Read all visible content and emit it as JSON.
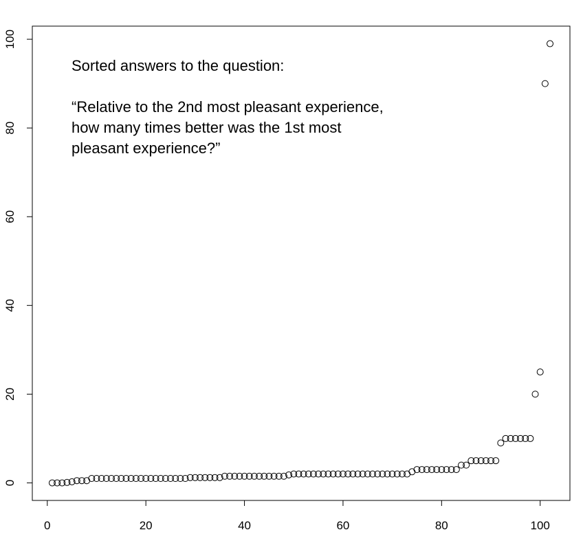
{
  "chart_data": {
    "type": "scatter",
    "annotation": [
      "Sorted answers to the question:",
      "“Relative to the 2nd most pleasant experience,",
      "how many times better was the 1st most",
      "pleasant experience?”"
    ],
    "x": [
      1,
      2,
      3,
      4,
      5,
      6,
      7,
      8,
      9,
      10,
      11,
      12,
      13,
      14,
      15,
      16,
      17,
      18,
      19,
      20,
      21,
      22,
      23,
      24,
      25,
      26,
      27,
      28,
      29,
      30,
      31,
      32,
      33,
      34,
      35,
      36,
      37,
      38,
      39,
      40,
      41,
      42,
      43,
      44,
      45,
      46,
      47,
      48,
      49,
      50,
      51,
      52,
      53,
      54,
      55,
      56,
      57,
      58,
      59,
      60,
      61,
      62,
      63,
      64,
      65,
      66,
      67,
      68,
      69,
      70,
      71,
      72,
      73,
      74,
      75,
      76,
      77,
      78,
      79,
      80,
      81,
      82,
      83,
      84,
      85,
      86,
      87,
      88,
      89,
      90,
      91,
      92,
      93,
      94,
      95,
      96,
      97,
      98,
      99,
      100,
      101,
      102
    ],
    "values": [
      0,
      0,
      0,
      0.1,
      0.25,
      0.5,
      0.5,
      0.5,
      1,
      1,
      1,
      1,
      1,
      1,
      1,
      1,
      1,
      1,
      1,
      1,
      1,
      1,
      1,
      1,
      1,
      1,
      1,
      1,
      1.2,
      1.2,
      1.2,
      1.2,
      1.2,
      1.2,
      1.2,
      1.5,
      1.5,
      1.5,
      1.5,
      1.5,
      1.5,
      1.5,
      1.5,
      1.5,
      1.5,
      1.5,
      1.5,
      1.5,
      1.8,
      2,
      2,
      2,
      2,
      2,
      2,
      2,
      2,
      2,
      2,
      2,
      2,
      2,
      2,
      2,
      2,
      2,
      2,
      2,
      2,
      2,
      2,
      2,
      2,
      2.5,
      3,
      3,
      3,
      3,
      3,
      3,
      3,
      3,
      3,
      4,
      4,
      5,
      5,
      5,
      5,
      5,
      5,
      9,
      10,
      10,
      10,
      10,
      10,
      10,
      20,
      25,
      90,
      99
    ],
    "color": "#000000",
    "xlim": [
      -3.04,
      106.04
    ],
    "ylim": [
      -3.96,
      102.96
    ],
    "xticks": [
      0,
      20,
      40,
      60,
      80,
      100
    ],
    "yticks": [
      0,
      20,
      40,
      60,
      80,
      100
    ]
  }
}
